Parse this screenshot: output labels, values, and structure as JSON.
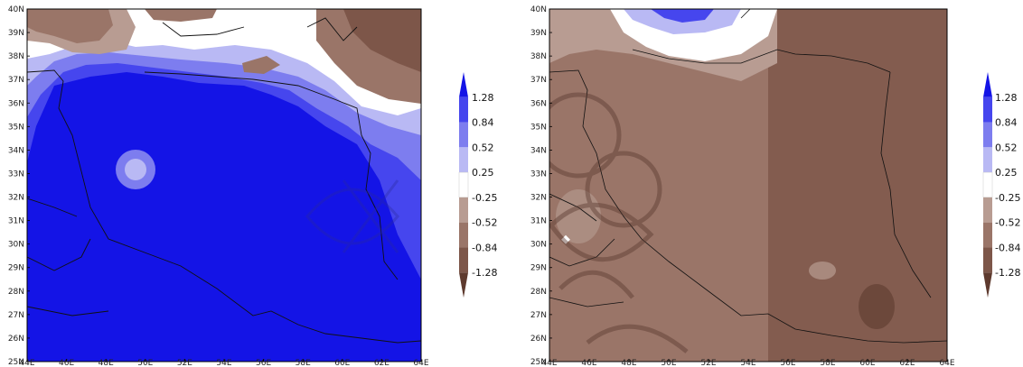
{
  "panels": [
    {
      "id": "left",
      "lat_labels": [
        "40N",
        "39N",
        "38N",
        "37N",
        "36N",
        "35N",
        "34N",
        "33N",
        "32N",
        "31N",
        "30N",
        "29N",
        "28N",
        "27N",
        "26N",
        "25N"
      ],
      "lon_labels": [
        "44E",
        "46E",
        "48E",
        "50E",
        "52E",
        "54E",
        "56E",
        "58E",
        "60E",
        "62E",
        "64E"
      ],
      "colorbar_labels": [
        "1.28",
        "0.84",
        "0.52",
        "0.25",
        "-0.25",
        "-0.52",
        "-0.84",
        "-1.28"
      ]
    },
    {
      "id": "right",
      "lat_labels": [
        "40N",
        "39N",
        "38N",
        "37N",
        "36N",
        "35N",
        "34N",
        "33N",
        "32N",
        "31N",
        "30N",
        "29N",
        "28N",
        "27N",
        "26N",
        "25N"
      ],
      "lon_labels": [
        "44E",
        "46E",
        "48E",
        "50E",
        "52E",
        "54E",
        "56E",
        "58E",
        "60E",
        "62E",
        "64E"
      ],
      "colorbar_labels": [
        "1.28",
        "0.84",
        "0.52",
        "0.25",
        "-0.25",
        "-0.52",
        "-0.84",
        "-1.28"
      ]
    }
  ],
  "palette": {
    "blue_3": "#1414e6",
    "blue_2": "#4646ee",
    "blue_1": "#7d7def",
    "blue_0": "#b9b9f4",
    "white": "#ffffff",
    "brown_0": "#b89c92",
    "brown_1": "#9a7568",
    "brown_2": "#7d5649",
    "brown_3": "#5e3a2e"
  }
}
